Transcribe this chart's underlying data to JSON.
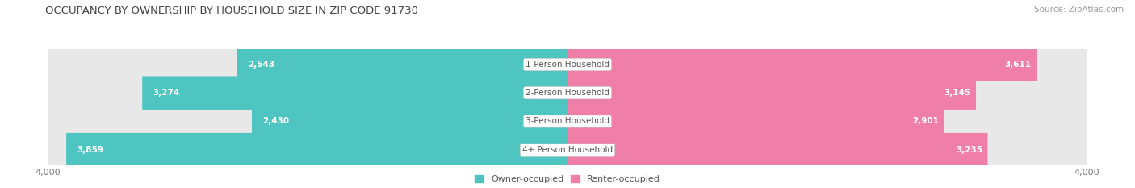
{
  "title": "OCCUPANCY BY OWNERSHIP BY HOUSEHOLD SIZE IN ZIP CODE 91730",
  "source": "Source: ZipAtlas.com",
  "categories": [
    "1-Person Household",
    "2-Person Household",
    "3-Person Household",
    "4+ Person Household"
  ],
  "owner_values": [
    2543,
    3274,
    2430,
    3859
  ],
  "renter_values": [
    3611,
    3145,
    2901,
    3235
  ],
  "max_val": 4000,
  "owner_color": "#4EC5C1",
  "renter_color": "#F07FA8",
  "bg_bar_color": "#E8E8E8",
  "title_fontsize": 9.5,
  "source_fontsize": 7.5,
  "bar_label_fontsize": 7.5,
  "category_fontsize": 7.5,
  "axis_label_fontsize": 8,
  "background_color": "#FFFFFF",
  "fig_width": 14.06,
  "fig_height": 2.33
}
